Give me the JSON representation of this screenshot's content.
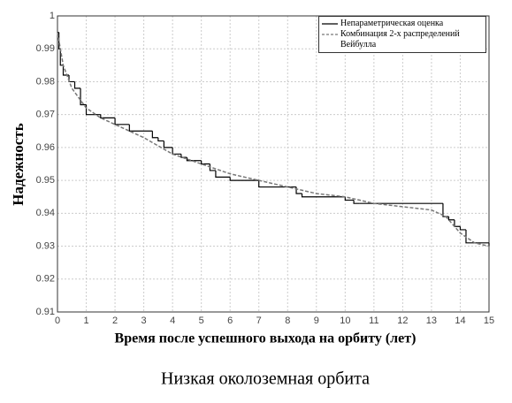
{
  "chart_data": {
    "type": "line",
    "xlabel": "Время после успешного выхода на орбиту (лет)",
    "ylabel": "Надежность",
    "caption": "Низкая околоземная орбита",
    "xlim": [
      0,
      15
    ],
    "xticks": [
      0,
      1,
      2,
      3,
      4,
      5,
      6,
      7,
      8,
      9,
      10,
      11,
      12,
      13,
      14,
      15
    ],
    "ylim": [
      0.91,
      1
    ],
    "yticks": [
      0.91,
      0.92,
      0.93,
      0.94,
      0.95,
      0.96,
      0.97,
      0.98,
      0.99,
      1
    ],
    "grid": true,
    "legend": "upper right",
    "series": [
      {
        "name": "Непараметрическая оценка",
        "color": "#000000",
        "style": "step",
        "x": [
          0,
          0.05,
          0.1,
          0.2,
          0.4,
          0.6,
          0.8,
          1.0,
          1.5,
          2.0,
          2.5,
          3.3,
          3.5,
          3.7,
          4.0,
          4.3,
          4.5,
          5.0,
          5.3,
          5.5,
          6.0,
          7.0,
          8.3,
          8.5,
          10.0,
          10.3,
          10.5,
          13.4,
          13.6,
          13.8,
          14.0,
          14.2,
          15
        ],
        "values": [
          0.995,
          0.99,
          0.985,
          0.982,
          0.98,
          0.978,
          0.973,
          0.97,
          0.969,
          0.967,
          0.965,
          0.963,
          0.962,
          0.96,
          0.958,
          0.957,
          0.956,
          0.955,
          0.953,
          0.951,
          0.95,
          0.948,
          0.946,
          0.945,
          0.944,
          0.943,
          0.943,
          0.939,
          0.938,
          0.936,
          0.935,
          0.931,
          0.93
        ]
      },
      {
        "name": "Комбинация 2-х распределений Вейбулла",
        "color": "#777777",
        "style": "dashed",
        "x": [
          0,
          0.2,
          0.5,
          1,
          1.5,
          2,
          3,
          4,
          5,
          6,
          7,
          8,
          9,
          10,
          11,
          12,
          13,
          13.5,
          14,
          14.5,
          15
        ],
        "values": [
          0.995,
          0.985,
          0.978,
          0.972,
          0.969,
          0.967,
          0.963,
          0.958,
          0.955,
          0.952,
          0.95,
          0.948,
          0.946,
          0.945,
          0.943,
          0.942,
          0.941,
          0.939,
          0.934,
          0.931,
          0.93
        ]
      }
    ]
  }
}
